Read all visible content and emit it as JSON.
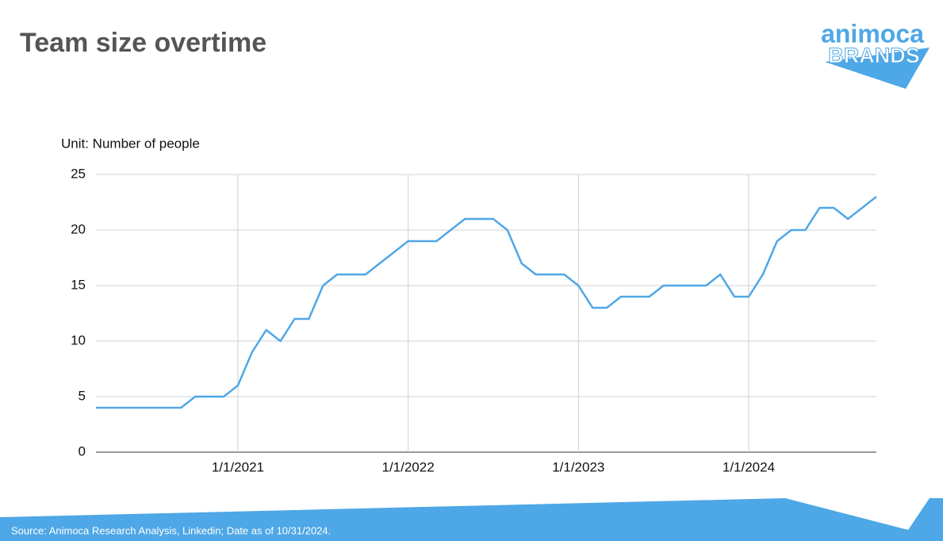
{
  "chart_data": {
    "type": "line",
    "title": "Team size overtime",
    "y_label": "Unit: Number of people",
    "source": "Source: Animoca Research Analysis, Linkedin; Date as of 10/31/2024.",
    "logo": {
      "top": "animoca",
      "bottom": "BRANDS"
    },
    "categories": [
      null,
      null,
      null,
      null,
      null,
      null,
      null,
      null,
      null,
      null,
      "1/1/2021",
      null,
      null,
      null,
      null,
      null,
      null,
      null,
      null,
      null,
      null,
      null,
      "1/1/2022",
      null,
      null,
      null,
      null,
      null,
      null,
      null,
      null,
      null,
      null,
      null,
      "1/1/2023",
      null,
      null,
      null,
      null,
      null,
      null,
      null,
      null,
      null,
      null,
      null,
      "1/1/2024",
      null,
      null,
      null,
      null,
      null,
      null,
      null,
      null,
      null
    ],
    "series": [
      {
        "name": "Team size",
        "color": "#4ea7e6",
        "values": [
          4,
          4,
          4,
          4,
          4,
          4,
          4,
          5,
          5,
          5,
          6,
          9,
          11,
          10,
          12,
          12,
          15,
          16,
          16,
          16,
          17,
          18,
          19,
          19,
          19,
          20,
          21,
          21,
          21,
          20,
          17,
          16,
          16,
          16,
          15,
          13,
          13,
          14,
          14,
          14,
          15,
          15,
          15,
          15,
          16,
          14,
          14,
          16,
          19,
          20,
          20,
          22,
          22,
          21,
          22,
          23
        ]
      }
    ],
    "ylim": [
      0,
      25
    ],
    "yticks": [
      0,
      5,
      10,
      15,
      20,
      25
    ],
    "grid": true
  }
}
